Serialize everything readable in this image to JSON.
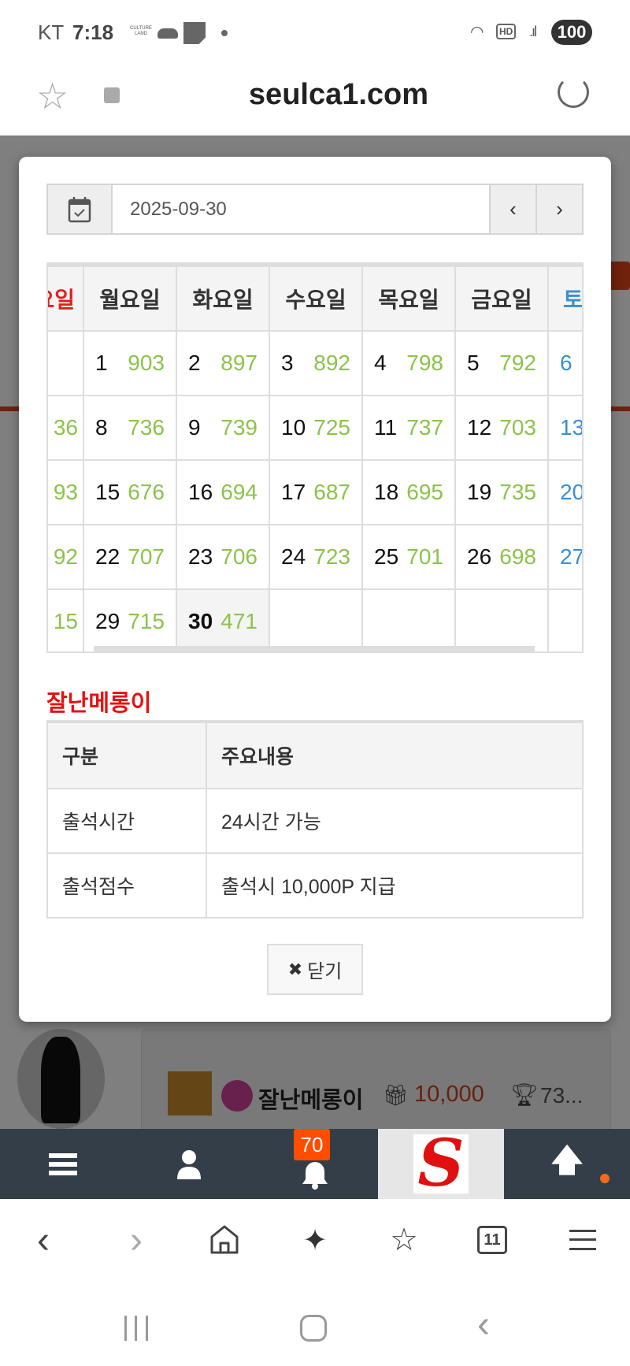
{
  "status_bar": {
    "carrier": "KT",
    "time": "7:18",
    "notif_label": "CULTURE LAND",
    "battery": "100"
  },
  "browser": {
    "url": "seulca1.com"
  },
  "background_post": {
    "username": "잘난메롱이",
    "points": "10,000",
    "trophy": "73..."
  },
  "modal": {
    "date_value": "2025-09-30",
    "prev_label": "‹",
    "next_label": "›",
    "calendar": {
      "headers": [
        "일요일",
        "월요일",
        "화요일",
        "수요일",
        "목요일",
        "금요일",
        "토요일"
      ],
      "weeks": [
        [
          {
            "d": "",
            "v": ""
          },
          {
            "d": "1",
            "v": "903"
          },
          {
            "d": "2",
            "v": "897"
          },
          {
            "d": "3",
            "v": "892"
          },
          {
            "d": "4",
            "v": "798"
          },
          {
            "d": "5",
            "v": "792"
          },
          {
            "d": "6",
            "v": ""
          }
        ],
        [
          {
            "d": "",
            "v": "36"
          },
          {
            "d": "8",
            "v": "736"
          },
          {
            "d": "9",
            "v": "739"
          },
          {
            "d": "10",
            "v": "725"
          },
          {
            "d": "11",
            "v": "737"
          },
          {
            "d": "12",
            "v": "703"
          },
          {
            "d": "13",
            "v": ""
          }
        ],
        [
          {
            "d": "",
            "v": "93"
          },
          {
            "d": "15",
            "v": "676"
          },
          {
            "d": "16",
            "v": "694"
          },
          {
            "d": "17",
            "v": "687"
          },
          {
            "d": "18",
            "v": "695"
          },
          {
            "d": "19",
            "v": "735"
          },
          {
            "d": "20",
            "v": ""
          }
        ],
        [
          {
            "d": "",
            "v": "92"
          },
          {
            "d": "22",
            "v": "707"
          },
          {
            "d": "23",
            "v": "706"
          },
          {
            "d": "24",
            "v": "723"
          },
          {
            "d": "25",
            "v": "701"
          },
          {
            "d": "26",
            "v": "698"
          },
          {
            "d": "27",
            "v": ""
          }
        ],
        [
          {
            "d": "",
            "v": "15"
          },
          {
            "d": "29",
            "v": "715"
          },
          {
            "d": "30",
            "v": "471",
            "today": true
          },
          {
            "d": "",
            "v": ""
          },
          {
            "d": "",
            "v": ""
          },
          {
            "d": "",
            "v": ""
          },
          {
            "d": "",
            "v": ""
          }
        ]
      ]
    },
    "title": "잘난메롱이",
    "info_table": {
      "headers": [
        "구분",
        "주요내용"
      ],
      "rows": [
        [
          "출석시간",
          "24시간 가능"
        ],
        [
          "출석점수",
          "출석시 10,000P 지급"
        ]
      ]
    },
    "close_label": "닫기"
  },
  "bottom_nav": {
    "badge": "70"
  },
  "browser_toolbar": {
    "tabs_count": "11"
  },
  "colors": {
    "accent_red": "#e81010",
    "value_green": "#8bc34a",
    "saturday_blue": "#3a8fd0",
    "nav_dark": "#343e48",
    "badge_orange": "#ff4d00"
  }
}
